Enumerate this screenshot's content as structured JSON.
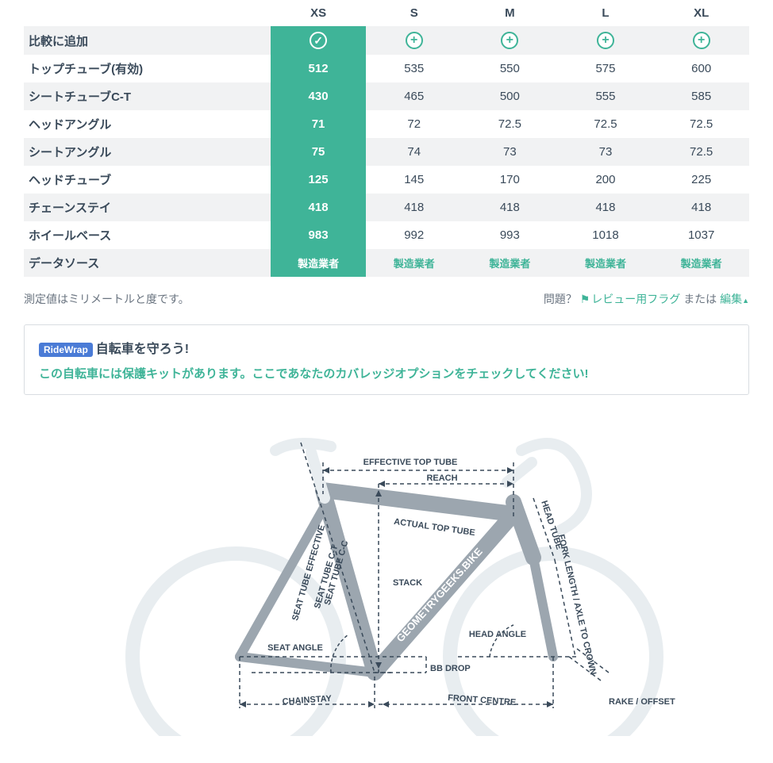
{
  "table": {
    "sizes": [
      "XS",
      "S",
      "M",
      "L",
      "XL"
    ],
    "add_row_label": "比較に追加",
    "selected_index": 0,
    "rows": [
      {
        "label": "トップチューブ(有効)",
        "values": [
          "512",
          "535",
          "550",
          "575",
          "600"
        ]
      },
      {
        "label": "シートチューブC-T",
        "values": [
          "430",
          "465",
          "500",
          "555",
          "585"
        ]
      },
      {
        "label": "ヘッドアングル",
        "values": [
          "71",
          "72",
          "72.5",
          "72.5",
          "72.5"
        ]
      },
      {
        "label": "シートアングル",
        "values": [
          "75",
          "74",
          "73",
          "73",
          "72.5"
        ]
      },
      {
        "label": "ヘッドチューブ",
        "values": [
          "125",
          "145",
          "170",
          "200",
          "225"
        ]
      },
      {
        "label": "チェーンステイ",
        "values": [
          "418",
          "418",
          "418",
          "418",
          "418"
        ]
      },
      {
        "label": "ホイールベース",
        "values": [
          "983",
          "992",
          "993",
          "1018",
          "1037"
        ]
      }
    ],
    "source_label": "データソース",
    "source_value": "製造業者"
  },
  "footer": {
    "note": "測定値はミリメートルと度です。",
    "question": "問題？",
    "flag_label": "レビュー用フラグ",
    "or_label": "または",
    "edit_label": "編集"
  },
  "promo": {
    "badge": "RideWrap",
    "title": "自転車を守ろう!",
    "sub": "この自転車には保護キットがあります。ここであなたのカバレッジオプションをチェックしてください!"
  },
  "diagram": {
    "watermark": "GEOMETRYGEEKS.BIKE",
    "labels": {
      "eff_top_tube": "EFFECTIVE TOP TUBE",
      "reach": "REACH",
      "actual_top_tube": "ACTUAL TOP TUBE",
      "head_tube": "HEAD TUBE",
      "fork_length": "FORK LENGTH / AXLE TO CROWN",
      "head_angle": "HEAD ANGLE",
      "stack": "STACK",
      "seat_tube_cc": "SEAT TUBE C-C",
      "seat_tube_ct": "SEAT TUBE C-T",
      "seat_tube_eff": "SEAT TUBE EFFECTIVE",
      "seat_angle": "SEAT ANGLE",
      "bb_drop": "BB DROP",
      "chainstay": "CHAINSTAY",
      "front_centre": "FRONT CENTRE",
      "rake": "RAKE / OFFSET"
    },
    "colors": {
      "frame": "#9ca6af",
      "measure": "#3a4a5a",
      "wheel": "#e8edf0",
      "label": "#3a4a5a"
    }
  }
}
